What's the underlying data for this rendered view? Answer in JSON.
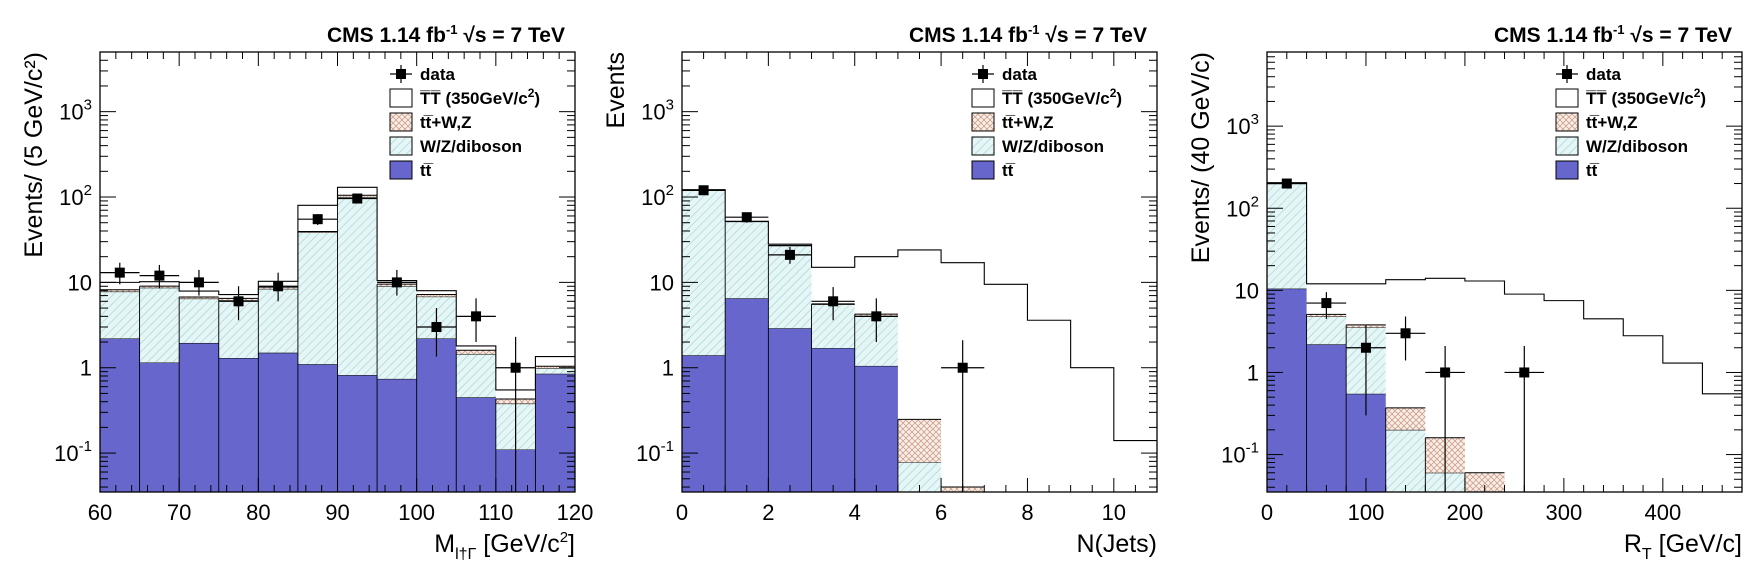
{
  "colors": {
    "ttbar": "#6666cc",
    "wz_diboson": "#e6f5f5",
    "wz_hatch": "#9ad4d4",
    "ttwz": "#f7eeea",
    "ttwz_hatch": "#cfa088",
    "signal": "#ffffff",
    "line": "#000000"
  },
  "chart_data": [
    {
      "type": "area",
      "header": {
        "left": "CMS 1.14 fb",
        "sup": "-1",
        "sqrt_sym": "√",
        "right": "s = 7 TeV"
      },
      "xlabel": {
        "main": "M",
        "sub": "l†Γ",
        "unit": " [GeV/c",
        "unit_sup": "2",
        "unit_end": "]"
      },
      "ylabel": "Events/ (5 GeV/c²)",
      "xlim": [
        60,
        120
      ],
      "ylim": [
        0.035,
        5000
      ],
      "yscale": "log",
      "x_ticks": [
        "60",
        "70",
        "80",
        "90",
        "100",
        "110",
        "120"
      ],
      "y_ticks": [
        {
          "value": 0.1,
          "base": "10",
          "sup": "-1"
        },
        {
          "value": 1,
          "base": "1",
          "sup": ""
        },
        {
          "value": 10,
          "base": "10",
          "sup": ""
        },
        {
          "value": 100,
          "base": "10",
          "sup": "2"
        },
        {
          "value": 1000,
          "base": "10",
          "sup": "3"
        }
      ],
      "bin_edges": [
        60,
        65,
        70,
        75,
        80,
        85,
        90,
        95,
        100,
        105,
        110,
        115,
        120
      ],
      "stack": [
        {
          "key": "ttbar",
          "values": [
            2.2,
            1.15,
            1.95,
            1.3,
            1.5,
            1.1,
            0.82,
            0.74,
            2.2,
            0.45,
            0.11,
            0.85
          ]
        },
        {
          "key": "wz_diboson",
          "values": [
            5.6,
            7.5,
            4.5,
            4.9,
            6.9,
            37.4,
            99.2,
            8.3,
            4.6,
            1.0,
            0.27,
            0.14
          ]
        },
        {
          "key": "ttwz",
          "values": [
            0.4,
            0.4,
            0.3,
            0.3,
            0.4,
            1.0,
            5.0,
            0.5,
            0.4,
            0.15,
            0.05,
            0.05
          ]
        }
      ],
      "signal_total": [
        10.0,
        10.2,
        7.9,
        7.2,
        10.3,
        80.0,
        130.0,
        10.5,
        8.0,
        1.8,
        0.55,
        1.35
      ],
      "data": [
        {
          "x": 62.5,
          "y": 13,
          "ylo": 9.5,
          "yhi": 17
        },
        {
          "x": 67.5,
          "y": 12,
          "ylo": 8.5,
          "yhi": 16
        },
        {
          "x": 72.5,
          "y": 10,
          "ylo": 7,
          "yhi": 14
        },
        {
          "x": 77.5,
          "y": 6,
          "ylo": 3.6,
          "yhi": 9
        },
        {
          "x": 82.5,
          "y": 9,
          "ylo": 6,
          "yhi": 13
        },
        {
          "x": 87.5,
          "y": 55,
          "ylo": 47,
          "yhi": 63
        },
        {
          "x": 92.5,
          "y": 96,
          "ylo": 86,
          "yhi": 106
        },
        {
          "x": 97.5,
          "y": 10,
          "ylo": 7,
          "yhi": 14
        },
        {
          "x": 102.5,
          "y": 3,
          "ylo": 1.35,
          "yhi": 5
        },
        {
          "x": 107.5,
          "y": 4,
          "ylo": 2,
          "yhi": 6.5
        },
        {
          "x": 112.5,
          "y": 1,
          "ylo": 0.02,
          "yhi": 2.3
        }
      ]
    },
    {
      "type": "area",
      "header": {
        "left": "CMS 1.14 fb",
        "sup": "-1",
        "sqrt_sym": "√",
        "right": "s = 7 TeV"
      },
      "xlabel": {
        "main": "N(Jets)",
        "sub": "",
        "unit": "",
        "unit_sup": "",
        "unit_end": ""
      },
      "ylabel": "Events",
      "xlim": [
        0,
        11
      ],
      "ylim": [
        0.035,
        5000
      ],
      "yscale": "log",
      "x_ticks": [
        "0",
        "2",
        "4",
        "6",
        "8",
        "10"
      ],
      "x_tick_values": [
        0,
        2,
        4,
        6,
        8,
        10
      ],
      "y_ticks": [
        {
          "value": 0.1,
          "base": "10",
          "sup": "-1"
        },
        {
          "value": 1,
          "base": "1",
          "sup": ""
        },
        {
          "value": 10,
          "base": "10",
          "sup": ""
        },
        {
          "value": 100,
          "base": "10",
          "sup": "2"
        },
        {
          "value": 1000,
          "base": "10",
          "sup": "3"
        }
      ],
      "bin_edges": [
        0,
        1,
        2,
        3,
        4,
        5,
        6,
        7,
        8,
        9,
        10,
        11
      ],
      "stack": [
        {
          "key": "ttbar",
          "values": [
            1.4,
            6.5,
            2.9,
            1.7,
            1.05,
            0,
            0,
            0,
            0,
            0,
            0
          ]
        },
        {
          "key": "wz_diboson",
          "values": [
            118,
            45,
            24,
            3.8,
            3.0,
            0.078,
            0,
            0,
            0,
            0,
            0
          ]
        },
        {
          "key": "ttwz",
          "values": [
            0.1,
            0.2,
            0.1,
            0.1,
            0.2,
            0.17,
            0.04,
            0,
            0,
            0,
            0
          ]
        }
      ],
      "signal_total": [
        122,
        52,
        28,
        15,
        20,
        24,
        17,
        9.5,
        3.6,
        1.0,
        0.14
      ],
      "data": [
        {
          "x": 0.5,
          "y": 120,
          "ylo": 108,
          "yhi": 132
        },
        {
          "x": 1.5,
          "y": 58,
          "ylo": 50,
          "yhi": 66
        },
        {
          "x": 2.5,
          "y": 21,
          "ylo": 16.5,
          "yhi": 26
        },
        {
          "x": 3.5,
          "y": 6,
          "ylo": 3.6,
          "yhi": 8.8
        },
        {
          "x": 4.5,
          "y": 4,
          "ylo": 2,
          "yhi": 6.5
        },
        {
          "x": 6.5,
          "y": 1,
          "ylo": 0.02,
          "yhi": 2.1
        }
      ]
    },
    {
      "type": "area",
      "header": {
        "left": "CMS 1.14 fb",
        "sup": "-1",
        "sqrt_sym": "√",
        "right": "s = 7 TeV"
      },
      "xlabel": {
        "main": "R",
        "sub": "T",
        "unit": " [GeV/c]",
        "unit_sup": "",
        "unit_end": ""
      },
      "ylabel": "Events/ (40 GeV/c)",
      "xlim": [
        0,
        480
      ],
      "ylim": [
        0.035,
        8000
      ],
      "yscale": "log",
      "x_ticks": [
        "0",
        "100",
        "200",
        "300",
        "400"
      ],
      "x_tick_values": [
        0,
        100,
        200,
        300,
        400
      ],
      "y_ticks": [
        {
          "value": 0.1,
          "base": "10",
          "sup": "-1"
        },
        {
          "value": 1,
          "base": "1",
          "sup": ""
        },
        {
          "value": 10,
          "base": "10",
          "sup": ""
        },
        {
          "value": 100,
          "base": "10",
          "sup": "2"
        },
        {
          "value": 1000,
          "base": "10",
          "sup": "3"
        }
      ],
      "bin_edges": [
        0,
        40,
        80,
        120,
        160,
        200,
        240,
        280,
        320,
        360,
        400,
        440,
        480
      ],
      "stack": [
        {
          "key": "ttbar",
          "values": [
            10.5,
            2.2,
            0.55,
            0,
            0,
            0,
            0,
            0,
            0,
            0,
            0,
            0
          ]
        },
        {
          "key": "wz_diboson",
          "values": [
            189,
            2.6,
            3.0,
            0.2,
            0.06,
            0,
            0,
            0,
            0,
            0,
            0,
            0
          ]
        },
        {
          "key": "ttwz",
          "values": [
            0.5,
            0.3,
            0.25,
            0.17,
            0.1,
            0.06,
            0,
            0,
            0,
            0,
            0,
            0
          ]
        }
      ],
      "signal_total": [
        205,
        12,
        12,
        13.5,
        14,
        13,
        9,
        7.5,
        4.5,
        2.8,
        1.3,
        0.55
      ],
      "data": [
        {
          "x": 20,
          "y": 200,
          "ylo": 182,
          "yhi": 218
        },
        {
          "x": 60,
          "y": 7,
          "ylo": 4.5,
          "yhi": 9.5
        },
        {
          "x": 100,
          "y": 2,
          "ylo": 0.3,
          "yhi": 3.8
        },
        {
          "x": 140,
          "y": 3,
          "ylo": 1.4,
          "yhi": 4.8
        },
        {
          "x": 180,
          "y": 1,
          "ylo": 0.02,
          "yhi": 2.1
        },
        {
          "x": 260,
          "y": 1,
          "ylo": 0.02,
          "yhi": 2.1
        }
      ]
    }
  ],
  "legend": {
    "position": "top-right",
    "items": [
      {
        "key": "data",
        "label": "data",
        "label_sup": "",
        "label_end": ""
      },
      {
        "key": "signal",
        "label": "T̅T̅ (350GeV/c",
        "label_sup": "2",
        "label_end": ")"
      },
      {
        "key": "ttwz",
        "label": "tt̅+W,Z",
        "label_sup": "",
        "label_end": ""
      },
      {
        "key": "wz_diboson",
        "label": "W/Z/diboson",
        "label_sup": "",
        "label_end": ""
      },
      {
        "key": "ttbar",
        "label": "tt̅",
        "label_sup": "",
        "label_end": ""
      }
    ]
  }
}
